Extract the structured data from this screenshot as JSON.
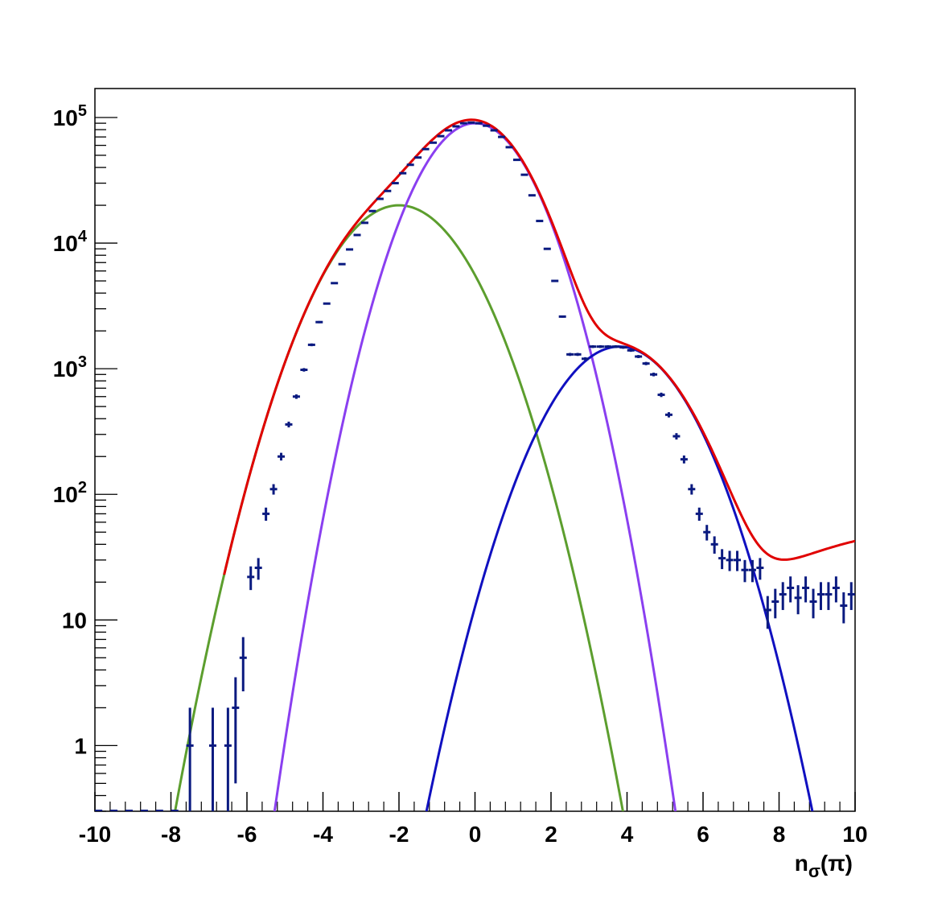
{
  "chart_data": {
    "type": "line",
    "xlabel": "nσ(π)",
    "xlim": [
      -10,
      10
    ],
    "ylim": [
      0.3,
      170000
    ],
    "yscale": "log",
    "grid": false,
    "legend": "none",
    "x_ticks": [
      -10,
      -8,
      -6,
      -4,
      -2,
      0,
      2,
      4,
      6,
      8,
      10
    ],
    "x_tick_labels": [
      "-10",
      "-8",
      "-6",
      "-4",
      "-2",
      "0",
      "2",
      "4",
      "6",
      "8",
      "10"
    ],
    "y_ticks": [
      1,
      10,
      100,
      1000,
      10000,
      100000
    ],
    "y_tick_labels": [
      {
        "base": "1",
        "exp": ""
      },
      {
        "base": "10",
        "exp": ""
      },
      {
        "base": "10",
        "exp": "2"
      },
      {
        "base": "10",
        "exp": "3"
      },
      {
        "base": "10",
        "exp": "4"
      },
      {
        "base": "10",
        "exp": "5"
      }
    ],
    "series": [
      {
        "kind": "gaussian",
        "color": "#5c9e2e",
        "amp": 20000,
        "mean": -2.0,
        "sigma": 1.25
      },
      {
        "kind": "gaussian",
        "color": "#8a3ff0",
        "amp": 90000,
        "mean": 0.0,
        "sigma": 1.05
      },
      {
        "kind": "gaussian",
        "color": "#1010c0",
        "amp": 1500,
        "mean": 3.8,
        "sigma": 1.23
      },
      {
        "kind": "gaussian",
        "color": "#1010c0",
        "amp": 50,
        "mean": 12.0,
        "sigma": 3.5,
        "hidden": true
      },
      {
        "kind": "sum",
        "color": "#e00000"
      }
    ],
    "data_points": {
      "color": "#0a1a80",
      "x": [
        -7.5,
        -6.9,
        -6.5,
        -6.3,
        -6.1,
        -5.9,
        -5.7,
        -5.5,
        -5.3,
        -5.1,
        -4.9,
        -4.7,
        -4.5,
        -4.3,
        -4.1,
        -3.9,
        -3.7,
        -3.5,
        -3.3,
        -3.1,
        -2.9,
        -2.7,
        -2.5,
        -2.3,
        -2.1,
        -1.9,
        -1.7,
        -1.5,
        -1.3,
        -1.1,
        -0.9,
        -0.7,
        -0.5,
        -0.3,
        -0.1,
        0.1,
        0.3,
        0.5,
        0.7,
        0.9,
        1.1,
        1.3,
        1.5,
        1.7,
        1.9,
        2.1,
        2.3,
        2.5,
        2.7,
        2.9,
        3.1,
        3.3,
        3.5,
        3.7,
        3.9,
        4.1,
        4.3,
        4.5,
        4.7,
        4.9,
        5.1,
        5.3,
        5.5,
        5.7,
        5.9,
        6.1,
        6.3,
        6.5,
        6.7,
        6.9,
        7.1,
        7.3,
        7.5,
        7.7,
        7.9,
        8.1,
        8.3,
        8.5,
        8.7,
        8.9,
        9.1,
        9.3,
        9.5,
        9.7,
        9.9
      ],
      "y": [
        1,
        1,
        1,
        2,
        5,
        22,
        26,
        70,
        110,
        200,
        360,
        600,
        980,
        1550,
        2350,
        3300,
        4800,
        6800,
        8900,
        11600,
        14500,
        18000,
        22500,
        26000,
        30000,
        36000,
        42000,
        48000,
        56000,
        63000,
        71000,
        79000,
        85000,
        90000,
        91000,
        90000,
        86000,
        79000,
        70000,
        58000,
        46000,
        35000,
        24000,
        15000,
        9000,
        5000,
        2600,
        1300,
        1300,
        1200,
        1500,
        1500,
        1500,
        1500,
        1480,
        1400,
        1250,
        1100,
        900,
        620,
        430,
        290,
        190,
        110,
        70,
        50,
        40,
        31,
        30,
        30,
        25,
        25,
        26,
        12,
        14,
        16,
        18,
        15,
        18,
        14,
        16,
        16,
        18,
        13,
        16
      ],
      "yerr": [
        1,
        1,
        1,
        1.5,
        2.3,
        4.7,
        5.1,
        8.4,
        10.5,
        14.1,
        19,
        24.5,
        31.3,
        39.4,
        48.5,
        57.4,
        69.3,
        82.5,
        94.3,
        107.7,
        120.4,
        134.2,
        150,
        161.2,
        173.2,
        189.7,
        204.9,
        219.1,
        236.6,
        251,
        266.5,
        281.1,
        291.5,
        300,
        301.7,
        300,
        293.3,
        281.1,
        264.6,
        240.8,
        214.5,
        187.1,
        154.9,
        122.5,
        94.9,
        70.7,
        51,
        36.1,
        36.1,
        34.6,
        38.7,
        38.7,
        38.7,
        38.7,
        38.5,
        37.4,
        35.4,
        33.2,
        30,
        24.9,
        20.7,
        17,
        13.8,
        10.5,
        8.4,
        7.1,
        6.3,
        5.6,
        5.5,
        5.5,
        5,
        5,
        5.1,
        3.5,
        3.7,
        4,
        4.2,
        3.9,
        4.2,
        3.7,
        4,
        4,
        4.2,
        3.6,
        4
      ]
    }
  }
}
